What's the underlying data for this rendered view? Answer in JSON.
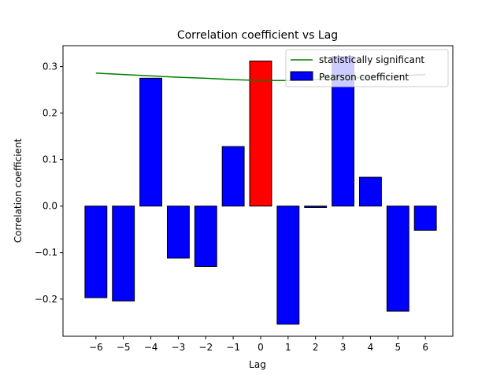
{
  "chart_data": {
    "type": "bar",
    "title": "Correlation coefficient vs Lag",
    "xlabel": "Lag",
    "ylabel": "Correlation coefficient",
    "categories": [
      -6,
      -5,
      -4,
      -3,
      -2,
      -1,
      0,
      1,
      2,
      3,
      4,
      5,
      6
    ],
    "category_labels": [
      "−6",
      "−5",
      "−4",
      "−3",
      "−2",
      "−1",
      "0",
      "1",
      "2",
      "3",
      "4",
      "5",
      "6"
    ],
    "series": [
      {
        "name": "Pearson coefficient",
        "type": "bar",
        "color": "#0000ff",
        "highlight_color": "#ff0000",
        "highlight_category": 0,
        "values": [
          -0.197,
          -0.204,
          0.275,
          -0.112,
          -0.13,
          0.128,
          0.312,
          -0.254,
          -0.003,
          0.322,
          0.062,
          -0.226,
          -0.052
        ]
      },
      {
        "name": "statistically significant",
        "type": "line",
        "color": "#008000",
        "x": [
          -6,
          -5,
          -4,
          -3,
          -2,
          -1,
          0,
          1,
          2,
          3,
          4,
          5,
          6
        ],
        "values": [
          0.286,
          0.283,
          0.28,
          0.277,
          0.275,
          0.272,
          0.27,
          0.27,
          0.272,
          0.275,
          0.277,
          0.28,
          0.283
        ]
      }
    ],
    "xlim": [
      -7.2,
      7.0
    ],
    "ylim": [
      -0.28,
      0.345
    ],
    "yticks": [
      -0.2,
      -0.1,
      0.0,
      0.1,
      0.2,
      0.3
    ],
    "ytick_labels": [
      "−0.2",
      "−0.1",
      "0.0",
      "0.1",
      "0.2",
      "0.3"
    ],
    "legend_position": "top-right",
    "grid": false
  }
}
